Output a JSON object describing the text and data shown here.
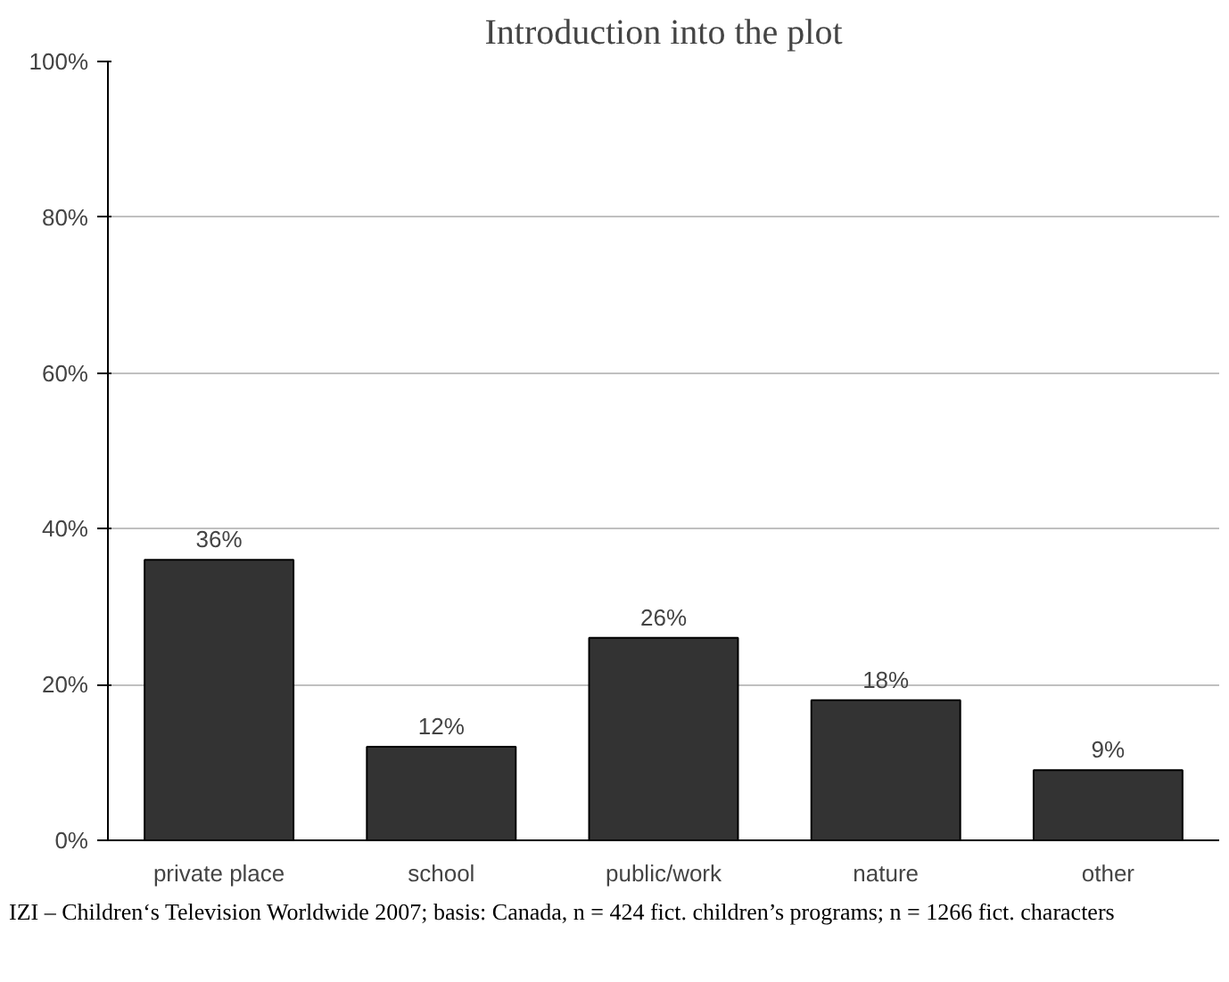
{
  "chart_data": {
    "type": "bar",
    "title": "Introduction into the plot",
    "categories": [
      "private place",
      "school",
      "public/work",
      "nature",
      "other"
    ],
    "values": [
      36,
      12,
      26,
      18,
      9
    ],
    "value_labels": [
      "36%",
      "12%",
      "26%",
      "18%",
      "9%"
    ],
    "color": "#333333",
    "ylim": [
      0,
      100
    ],
    "yticks": [
      {
        "value": 0,
        "label": "0%"
      },
      {
        "value": 20,
        "label": "20%"
      },
      {
        "value": 40,
        "label": "40%"
      },
      {
        "value": 60,
        "label": "60%"
      },
      {
        "value": 80,
        "label": "80%"
      },
      {
        "value": 100,
        "label": "100%"
      }
    ],
    "grid": "y",
    "annotations": [
      "IZI – Children‘s Television Worldwide 2007; basis: Canada, n = 424 fict. children’s programs; n = 1266 fict. characters"
    ]
  }
}
